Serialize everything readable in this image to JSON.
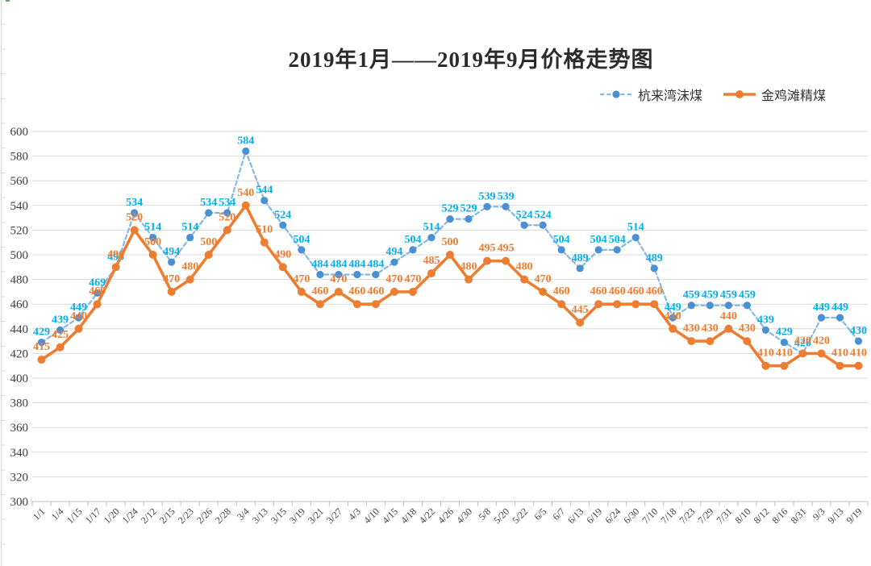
{
  "title": "2019年1月——2019年9月价格走势图",
  "legend": {
    "items": [
      {
        "label": "杭来湾沫煤"
      },
      {
        "label": "金鸡滩精煤"
      }
    ]
  },
  "chart_data": {
    "type": "line",
    "title": "2019年1月——2019年9月价格走势图",
    "categories": [
      "1/1",
      "1/4",
      "1/15",
      "1/17",
      "1/20",
      "1/24",
      "2/12",
      "2/15",
      "2/23",
      "2/26",
      "2/28",
      "3/4",
      "3/13",
      "3/15",
      "3/19",
      "3/21",
      "3/27",
      "4/3",
      "4/10",
      "4/15",
      "4/18",
      "4/22",
      "4/26",
      "4/30",
      "5/8",
      "5/20",
      "5/22",
      "6/5",
      "6/7",
      "6/13",
      "6/19",
      "6/24",
      "6/30",
      "7/10",
      "7/18",
      "7/23",
      "7/29",
      "7/31",
      "8/10",
      "8/12",
      "8/16",
      "8/31",
      "9/3",
      "9/13",
      "9/19"
    ],
    "series": [
      {
        "name": "杭来湾沫煤",
        "style": "dashed",
        "line_color": "#85B8E4",
        "marker_color": "#4A90D2",
        "label_color": "#00B0F0",
        "values": [
          429,
          439,
          449,
          469,
          490,
          534,
          514,
          494,
          514,
          534,
          534,
          584,
          544,
          524,
          504,
          484,
          484,
          484,
          484,
          494,
          504,
          514,
          529,
          529,
          539,
          539,
          524,
          524,
          504,
          489,
          504,
          504,
          514,
          489,
          449,
          459,
          459,
          459,
          459,
          439,
          429,
          420,
          449,
          449,
          430
        ]
      },
      {
        "name": "金鸡滩精煤",
        "style": "solid",
        "line_color": "#ED7D31",
        "marker_color": "#ED7D31",
        "label_color": "#ED7D31",
        "values": [
          415,
          425,
          440,
          460,
          490,
          520,
          500,
          470,
          480,
          500,
          520,
          540,
          510,
          490,
          470,
          460,
          470,
          460,
          460,
          470,
          470,
          485,
          500,
          480,
          495,
          495,
          480,
          470,
          460,
          445,
          460,
          460,
          460,
          460,
          440,
          430,
          430,
          440,
          430,
          410,
          410,
          420,
          420,
          410,
          410
        ]
      }
    ],
    "xlabel": "",
    "ylabel": "",
    "ylim": [
      300,
      600
    ],
    "ytick_step": 20,
    "grid": true,
    "data_labels": true,
    "legend_position": "top-right",
    "colors": {
      "gridline": "#D9D9D9",
      "axis": "#BFBFBF",
      "axis_text": "#404040"
    }
  }
}
